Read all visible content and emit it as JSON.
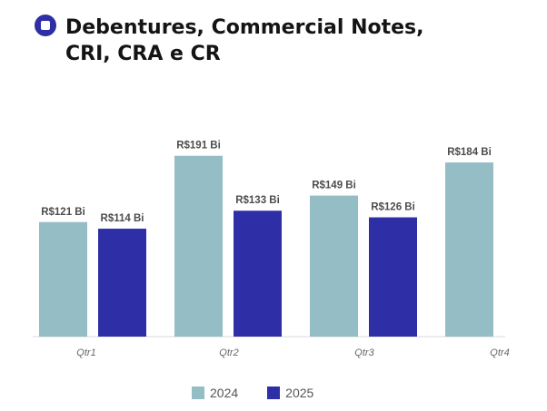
{
  "chart_data": {
    "type": "bar",
    "title": "Debentures, Commercial Notes, CRI, CRA e CR",
    "categories": [
      "Qtr1",
      "Qtr2",
      "Qtr3",
      "Qtr4"
    ],
    "series": [
      {
        "name": "2024",
        "color": "#94bdc6",
        "values": [
          121,
          191,
          149,
          184
        ],
        "labels": [
          "R$121 Bi",
          "R$191 Bi",
          "R$149 Bi",
          "R$184 Bi"
        ]
      },
      {
        "name": "2025",
        "color": "#2e2fa6",
        "values": [
          114,
          133,
          126,
          null
        ],
        "labels": [
          "R$114 Bi",
          "R$133 Bi",
          "R$126 Bi",
          null
        ]
      }
    ],
    "xlabel": "",
    "ylabel": "",
    "ylim": [
      0,
      200
    ],
    "grid": false,
    "legend": "bottom-center"
  }
}
